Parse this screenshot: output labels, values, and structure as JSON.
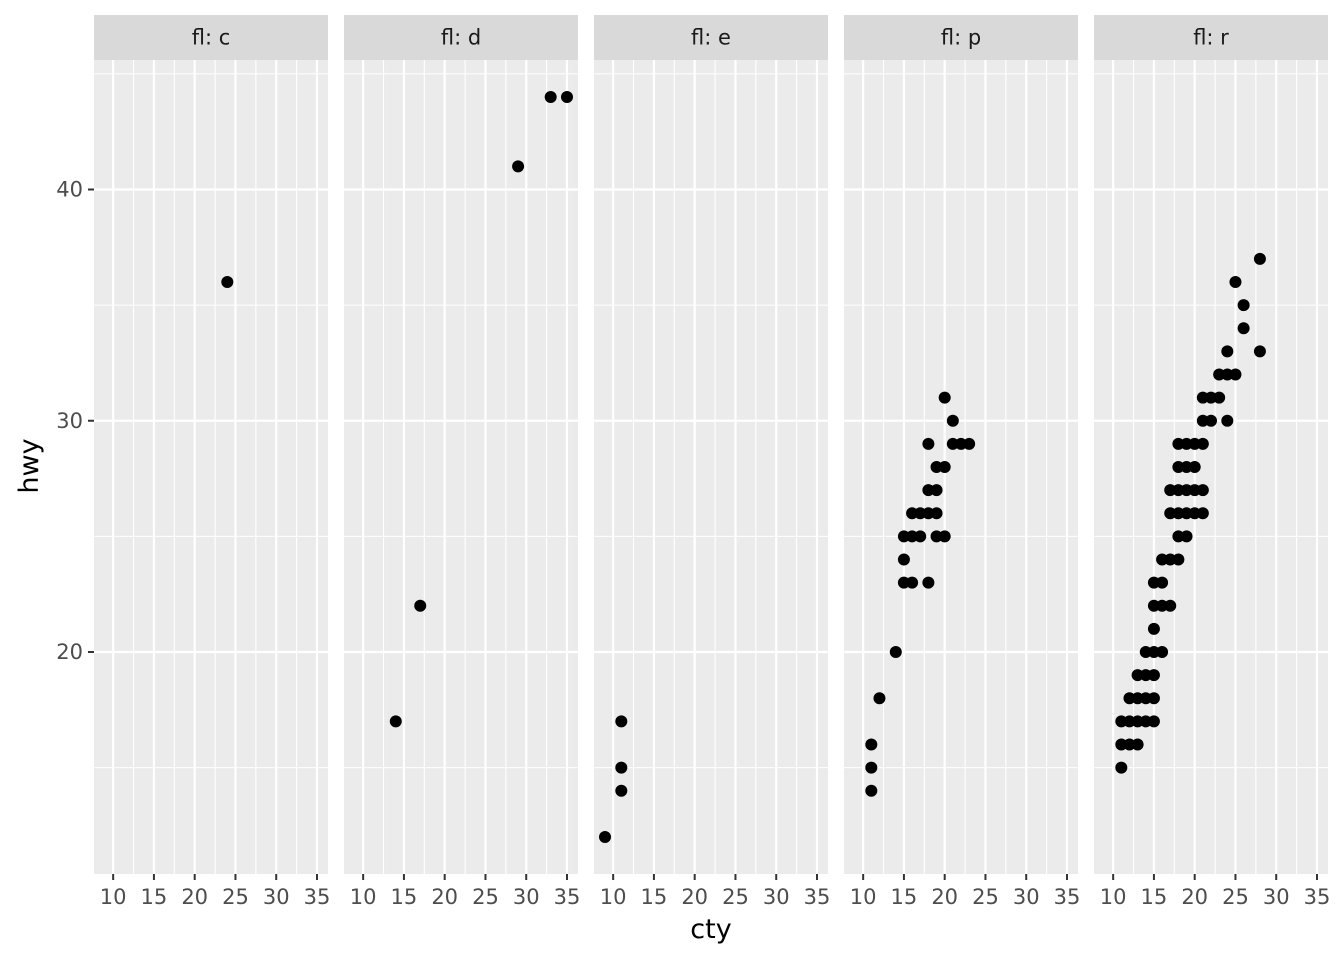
{
  "chart_data": {
    "type": "scatter",
    "facet_by": "fl",
    "xlabel": "cty",
    "ylabel": "hwy",
    "x_ticks": [
      10,
      15,
      20,
      25,
      30,
      35
    ],
    "y_ticks": [
      20,
      30,
      40
    ],
    "xlim": [
      7.65,
      36.35
    ],
    "ylim": [
      10.4,
      45.6
    ],
    "grid": true,
    "colors": {
      "panel_bg": "#ebebeb",
      "grid": "#ffffff",
      "strip_bg": "#d9d9d9",
      "point": "#000000"
    },
    "panels": [
      {
        "label": "fl: c",
        "points": [
          [
            24,
            36
          ]
        ]
      },
      {
        "label": "fl: d",
        "points": [
          [
            14,
            17
          ],
          [
            17,
            22
          ],
          [
            29,
            41
          ],
          [
            33,
            44
          ],
          [
            35,
            44
          ]
        ]
      },
      {
        "label": "fl: e",
        "points": [
          [
            9,
            12
          ],
          [
            11,
            17
          ],
          [
            11,
            15
          ],
          [
            11,
            14
          ]
        ]
      },
      {
        "label": "fl: p",
        "points": [
          [
            11,
            16
          ],
          [
            11,
            15
          ],
          [
            11,
            14
          ],
          [
            12,
            18
          ],
          [
            14,
            20
          ],
          [
            15,
            25
          ],
          [
            15,
            24
          ],
          [
            15,
            23
          ],
          [
            16,
            26
          ],
          [
            16,
            25
          ],
          [
            16,
            23
          ],
          [
            17,
            26
          ],
          [
            17,
            25
          ],
          [
            18,
            29
          ],
          [
            18,
            27
          ],
          [
            18,
            26
          ],
          [
            18,
            23
          ],
          [
            19,
            28
          ],
          [
            19,
            27
          ],
          [
            19,
            26
          ],
          [
            19,
            25
          ],
          [
            20,
            31
          ],
          [
            20,
            28
          ],
          [
            20,
            25
          ],
          [
            21,
            30
          ],
          [
            21,
            29
          ],
          [
            22,
            29
          ],
          [
            23,
            29
          ]
        ]
      },
      {
        "label": "fl: r",
        "points": [
          [
            11,
            17
          ],
          [
            11,
            16
          ],
          [
            11,
            15
          ],
          [
            12,
            18
          ],
          [
            12,
            17
          ],
          [
            12,
            16
          ],
          [
            13,
            19
          ],
          [
            13,
            18
          ],
          [
            13,
            17
          ],
          [
            13,
            16
          ],
          [
            14,
            20
          ],
          [
            14,
            19
          ],
          [
            14,
            18
          ],
          [
            14,
            17
          ],
          [
            15,
            23
          ],
          [
            15,
            22
          ],
          [
            15,
            21
          ],
          [
            15,
            20
          ],
          [
            15,
            19
          ],
          [
            15,
            18
          ],
          [
            15,
            17
          ],
          [
            16,
            24
          ],
          [
            16,
            23
          ],
          [
            16,
            22
          ],
          [
            16,
            20
          ],
          [
            17,
            27
          ],
          [
            17,
            26
          ],
          [
            17,
            24
          ],
          [
            17,
            22
          ],
          [
            18,
            29
          ],
          [
            18,
            28
          ],
          [
            18,
            27
          ],
          [
            18,
            26
          ],
          [
            18,
            25
          ],
          [
            18,
            24
          ],
          [
            19,
            29
          ],
          [
            19,
            28
          ],
          [
            19,
            27
          ],
          [
            19,
            26
          ],
          [
            19,
            25
          ],
          [
            20,
            29
          ],
          [
            20,
            28
          ],
          [
            20,
            27
          ],
          [
            20,
            26
          ],
          [
            21,
            31
          ],
          [
            21,
            30
          ],
          [
            21,
            29
          ],
          [
            21,
            27
          ],
          [
            21,
            26
          ],
          [
            22,
            31
          ],
          [
            22,
            30
          ],
          [
            23,
            32
          ],
          [
            23,
            31
          ],
          [
            24,
            33
          ],
          [
            24,
            32
          ],
          [
            24,
            30
          ],
          [
            25,
            36
          ],
          [
            25,
            32
          ],
          [
            26,
            35
          ],
          [
            26,
            34
          ],
          [
            28,
            37
          ],
          [
            28,
            33
          ]
        ]
      }
    ]
  }
}
